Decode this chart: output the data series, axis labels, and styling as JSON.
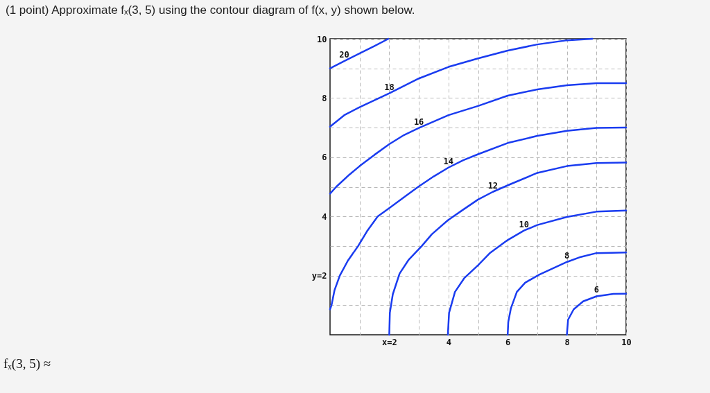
{
  "chart_data": {
    "type": "line",
    "title": "(1 point) Approximate fₓ(3, 5) using the contour diagram of f(x, y) shown below.",
    "annotations": [
      "fₓ(3, 5) ≈"
    ],
    "xlim": [
      0,
      10
    ],
    "ylim": [
      0,
      10
    ],
    "xticks": [
      {
        "value": 1,
        "label": null
      },
      {
        "value": 2,
        "label": "x=2"
      },
      {
        "value": 3,
        "label": null
      },
      4,
      {
        "value": 5,
        "label": null
      },
      6,
      {
        "value": 7,
        "label": null
      },
      8,
      {
        "value": 9,
        "label": null
      },
      10
    ],
    "yticks": [
      {
        "value": 1,
        "label": null
      },
      {
        "value": 2,
        "label": "y=2"
      },
      {
        "value": 3,
        "label": null
      },
      4,
      {
        "value": 5,
        "label": null
      },
      6,
      {
        "value": 7,
        "label": null
      },
      8,
      {
        "value": 9,
        "label": null
      },
      10
    ],
    "grid": true,
    "series": [
      {
        "name": "20",
        "color": "#1a3cf0",
        "x": [
          0,
          0.48,
          1.03,
          1.49,
          1.97
        ],
        "values": [
          9.0,
          9.25,
          9.52,
          9.75,
          10.0
        ]
      },
      {
        "name": "18",
        "color": "#1a3cf0",
        "x": [
          0,
          0.48,
          1,
          2,
          3,
          4,
          5,
          6,
          7,
          8,
          8.86
        ],
        "values": [
          7.03,
          7.42,
          7.69,
          8.16,
          8.66,
          9.05,
          9.34,
          9.6,
          9.81,
          9.95,
          10.0
        ]
      },
      {
        "name": "16",
        "color": "#1a3cf0",
        "x": [
          0,
          0.21,
          0.64,
          1,
          1.5,
          2,
          2.5,
          3,
          4,
          5,
          6,
          7,
          8,
          9,
          10
        ],
        "values": [
          4.77,
          5.0,
          5.4,
          5.7,
          6.08,
          6.44,
          6.75,
          6.99,
          7.42,
          7.73,
          8.08,
          8.29,
          8.43,
          8.5,
          8.5
        ]
      },
      {
        "name": "14",
        "color": "#1a3cf0",
        "x": [
          0,
          0.05,
          0.15,
          0.33,
          0.6,
          0.95,
          1.25,
          1.61,
          2,
          2.5,
          2.98,
          3.5,
          4,
          4.5,
          5,
          6,
          7,
          8,
          9,
          10
        ],
        "values": [
          0.86,
          1.0,
          1.5,
          2.0,
          2.5,
          3.0,
          3.5,
          4.0,
          4.28,
          4.65,
          5.0,
          5.35,
          5.65,
          5.9,
          6.1,
          6.48,
          6.72,
          6.89,
          6.99,
          7.0
        ]
      },
      {
        "name": "12",
        "color": "#1a3cf0",
        "x": [
          2,
          2.02,
          2.12,
          2.35,
          2.66,
          3.1,
          3.44,
          3.98,
          4.5,
          5,
          5.5,
          6.05,
          7,
          8,
          9,
          10
        ],
        "values": [
          0,
          0.74,
          1.37,
          2.07,
          2.54,
          3.0,
          3.4,
          3.87,
          4.23,
          4.57,
          4.83,
          5.07,
          5.47,
          5.7,
          5.8,
          5.82
        ]
      },
      {
        "name": "10",
        "color": "#1a3cf0",
        "x": [
          3.98,
          4.02,
          4.22,
          4.53,
          5,
          5.41,
          6,
          6.55,
          7,
          8,
          9,
          10
        ],
        "values": [
          0,
          0.74,
          1.45,
          1.91,
          2.35,
          2.77,
          3.2,
          3.52,
          3.71,
          3.98,
          4.16,
          4.2
        ]
      },
      {
        "name": "8",
        "color": "#1a3cf0",
        "x": [
          6,
          6.02,
          6.11,
          6.31,
          6.59,
          7.06,
          8,
          8.47,
          9,
          10
        ],
        "values": [
          0,
          0.43,
          0.9,
          1.45,
          1.76,
          2.03,
          2.46,
          2.63,
          2.76,
          2.78
        ]
      },
      {
        "name": "6",
        "color": "#1a3cf0",
        "x": [
          8,
          8.04,
          8.23,
          8.55,
          9,
          9.57,
          10
        ],
        "values": [
          0,
          0.51,
          0.86,
          1.13,
          1.3,
          1.38,
          1.39
        ]
      }
    ]
  }
}
